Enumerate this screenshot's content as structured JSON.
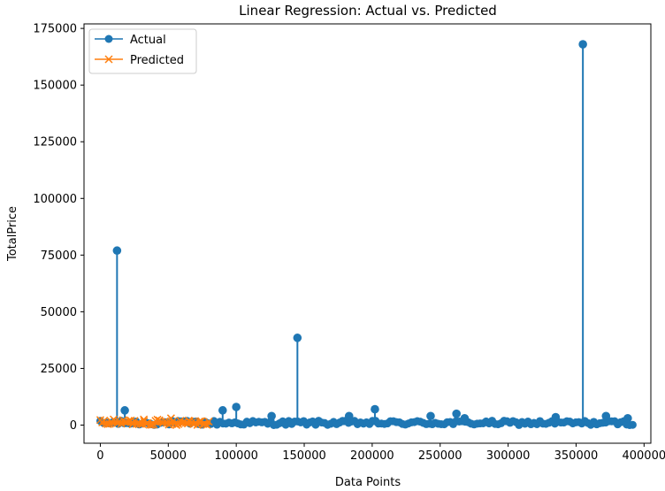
{
  "chart_data": {
    "type": "line",
    "title": "Linear Regression: Actual vs. Predicted",
    "xlabel": "Data Points",
    "ylabel": "TotalPrice",
    "xlim": [
      -12000,
      405000
    ],
    "ylim": [
      -8000,
      177000
    ],
    "xticks": [
      0,
      50000,
      100000,
      150000,
      200000,
      250000,
      300000,
      350000,
      400000
    ],
    "yticks": [
      0,
      25000,
      50000,
      75000,
      100000,
      125000,
      150000,
      175000
    ],
    "grid": false,
    "legend_position": "top-left",
    "series": [
      {
        "name": "Actual",
        "color": "#1f77b4",
        "marker": "circle",
        "x_range": [
          0,
          393000
        ],
        "baseline_band": [
          0,
          1500
        ],
        "spikes": [
          {
            "x": 12300,
            "y": 77000
          },
          {
            "x": 18000,
            "y": 6500
          },
          {
            "x": 90000,
            "y": 6500
          },
          {
            "x": 100000,
            "y": 8000
          },
          {
            "x": 126000,
            "y": 4000
          },
          {
            "x": 145000,
            "y": 38500
          },
          {
            "x": 183000,
            "y": 4000
          },
          {
            "x": 202000,
            "y": 7000
          },
          {
            "x": 243000,
            "y": 4000
          },
          {
            "x": 262000,
            "y": 5000
          },
          {
            "x": 268000,
            "y": 3000
          },
          {
            "x": 335000,
            "y": 3500
          },
          {
            "x": 355000,
            "y": 168000
          },
          {
            "x": 372000,
            "y": 4000
          },
          {
            "x": 388000,
            "y": 3000
          }
        ]
      },
      {
        "name": "Predicted",
        "color": "#ff7f0e",
        "marker": "x",
        "x_range": [
          0,
          81000
        ],
        "baseline_band": [
          0,
          2500
        ],
        "peaks": [
          {
            "x": 8000,
            "y": 1500
          },
          {
            "x": 32000,
            "y": 2500
          },
          {
            "x": 52000,
            "y": 3000
          },
          {
            "x": 65000,
            "y": 2000
          }
        ]
      }
    ]
  }
}
